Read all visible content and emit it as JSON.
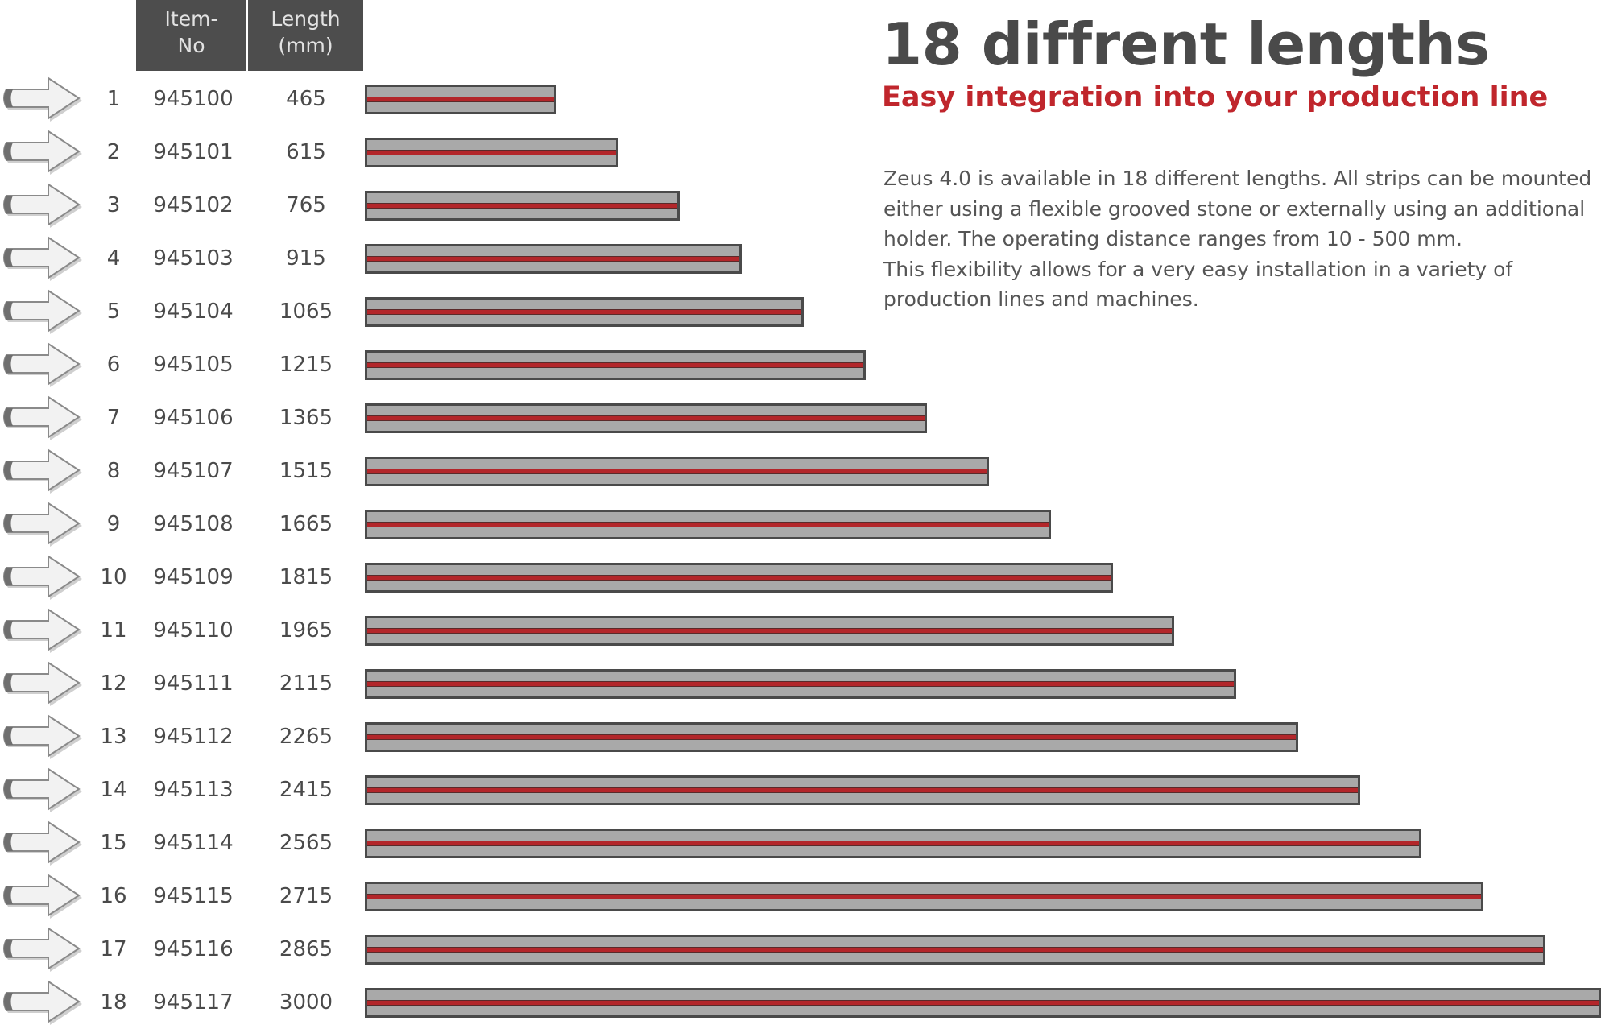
{
  "headline": "18 diffrent lengths",
  "subheadline": "Easy integration into your production line",
  "description": [
    "Zeus 4.0 is available in 18 different lengths. All strips can be mounted",
    "either using a flexible grooved stone or externally using an additional",
    "holder. The operating distance ranges from 10 - 500 mm.",
    "This flexibility allows for a very easy installation in a variety of",
    "production lines and machines."
  ],
  "table_header": {
    "item_no": [
      "Item-",
      "No"
    ],
    "length": [
      "Length",
      "(mm)"
    ]
  },
  "colors": {
    "header_bg": "#4d4d4d",
    "bar_fill": "#a9a9a9",
    "bar_border": "#4a4a4a",
    "stripe": "#b3262a",
    "accent": "#c0262c"
  },
  "icons": {
    "row_marker": "arrow-right-icon"
  },
  "chart_data": {
    "type": "bar",
    "orientation": "horizontal",
    "categories": [
      "1",
      "2",
      "3",
      "4",
      "5",
      "6",
      "7",
      "8",
      "9",
      "10",
      "11",
      "12",
      "13",
      "14",
      "15",
      "16",
      "17",
      "18"
    ],
    "item_numbers": [
      "945100",
      "945101",
      "945102",
      "945103",
      "945104",
      "945105",
      "945106",
      "945107",
      "945108",
      "945109",
      "945110",
      "945111",
      "945112",
      "945113",
      "945114",
      "945115",
      "945116",
      "945117"
    ],
    "values": [
      465,
      615,
      765,
      915,
      1065,
      1215,
      1365,
      1515,
      1665,
      1815,
      1965,
      2115,
      2265,
      2415,
      2565,
      2715,
      2865,
      3000
    ],
    "value_labels": [
      "465",
      "615",
      "765",
      "915",
      "1065",
      "1215",
      "1365",
      "1515",
      "1665",
      "1815",
      "1965",
      "2115",
      "2265",
      "2415",
      "2565",
      "2715",
      "2865",
      "3000"
    ],
    "title": "",
    "xlabel": "",
    "ylabel": "",
    "xlim": [
      0,
      3000
    ],
    "grid": false,
    "legend": "none"
  }
}
